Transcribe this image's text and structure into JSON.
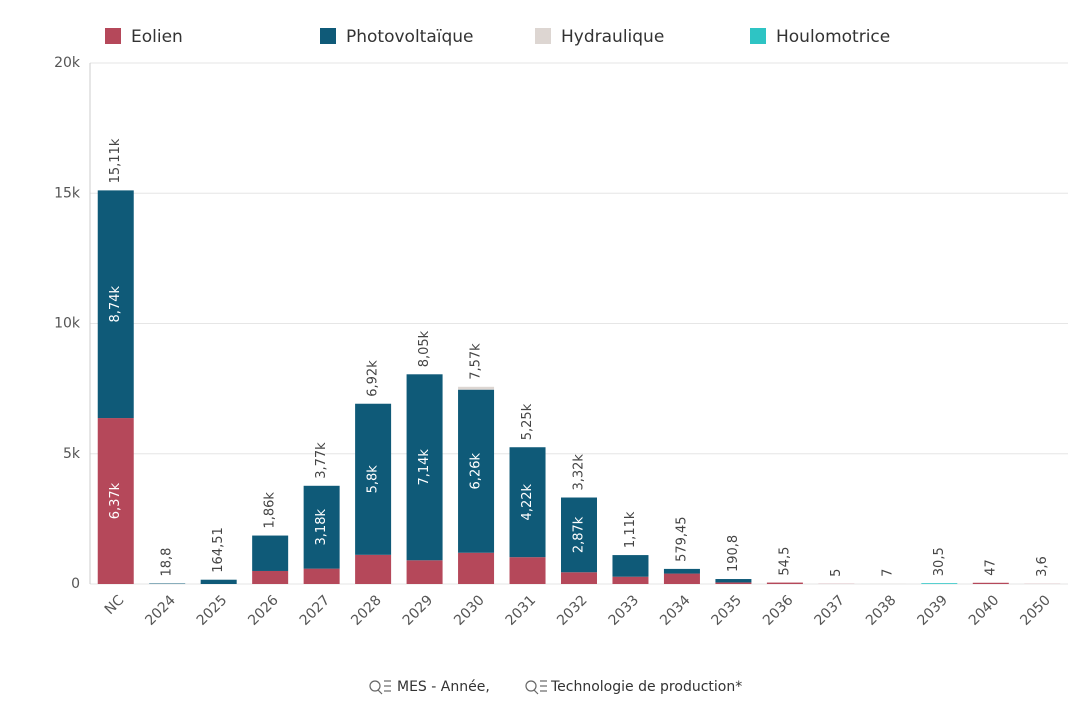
{
  "chart_data": {
    "type": "stacked_bar",
    "categories": [
      "NC",
      "2024",
      "2025",
      "2026",
      "2027",
      "2028",
      "2029",
      "2030",
      "2031",
      "2032",
      "2033",
      "2034",
      "2035",
      "2036",
      "2037",
      "2038",
      "2039",
      "2040",
      "2050"
    ],
    "series": [
      {
        "name": "Eolien",
        "color": "#b5485a",
        "values": [
          6370,
          0,
          0,
          500,
          590,
          1120,
          910,
          1200,
          1030,
          450,
          280,
          400,
          60,
          54.5,
          5,
          0,
          0,
          47,
          3.6
        ],
        "value_labels": [
          "6,37k",
          null,
          null,
          null,
          null,
          null,
          null,
          null,
          null,
          null,
          null,
          null,
          null,
          null,
          null,
          null,
          null,
          null,
          null
        ]
      },
      {
        "name": "Photovoltaïque",
        "color": "#0f5a78",
        "values": [
          8740,
          18.8,
          164.51,
          1360,
          3180,
          5800,
          7140,
          6260,
          4220,
          2870,
          830,
          179.45,
          130.8,
          0,
          0,
          0,
          0,
          0,
          0
        ],
        "value_labels": [
          "8,74k",
          null,
          null,
          null,
          "3,18k",
          "5,8k",
          "7,14k",
          "6,26k",
          "4,22k",
          "2,87k",
          null,
          null,
          null,
          null,
          null,
          null,
          null,
          null,
          null
        ]
      },
      {
        "name": "Hydraulique",
        "color": "#ddd6d2",
        "values": [
          0,
          0,
          0,
          0,
          0,
          0,
          0,
          110,
          0,
          0,
          0,
          0,
          0,
          0,
          0,
          7,
          0,
          0,
          0
        ]
      },
      {
        "name": "Houlomotrice",
        "color": "#2ec4c4",
        "values": [
          0,
          0,
          0,
          0,
          0,
          0,
          0,
          0,
          0,
          0,
          0,
          0,
          0,
          0,
          0,
          0,
          30.5,
          0,
          0
        ]
      }
    ],
    "totals": [
      15110,
      18.8,
      164.51,
      1860,
      3770,
      6920,
      8050,
      7570,
      5250,
      3320,
      1110,
      579.45,
      190.8,
      54.5,
      5,
      7,
      30.5,
      47,
      3.6
    ],
    "total_labels": [
      "15,11k",
      "18,8",
      "164,51",
      "1,86k",
      "3,77k",
      "6,92k",
      "8,05k",
      "7,57k",
      "5,25k",
      "3,32k",
      "1,11k",
      "579,45",
      "190,8",
      "54,5",
      "5",
      "7",
      "30,5",
      "47",
      "3,6"
    ],
    "ylim": [
      0,
      20000
    ],
    "yticks": [
      0,
      {
        "value": 5000,
        "label": "5k"
      },
      {
        "value": 10000,
        "label": "10k"
      },
      {
        "value": 15000,
        "label": "15k"
      },
      {
        "value": 20000,
        "label": "20k"
      }
    ],
    "grid": true,
    "legend": "top",
    "x_label": [
      "MES - Année,",
      "Technologie de production*"
    ]
  }
}
